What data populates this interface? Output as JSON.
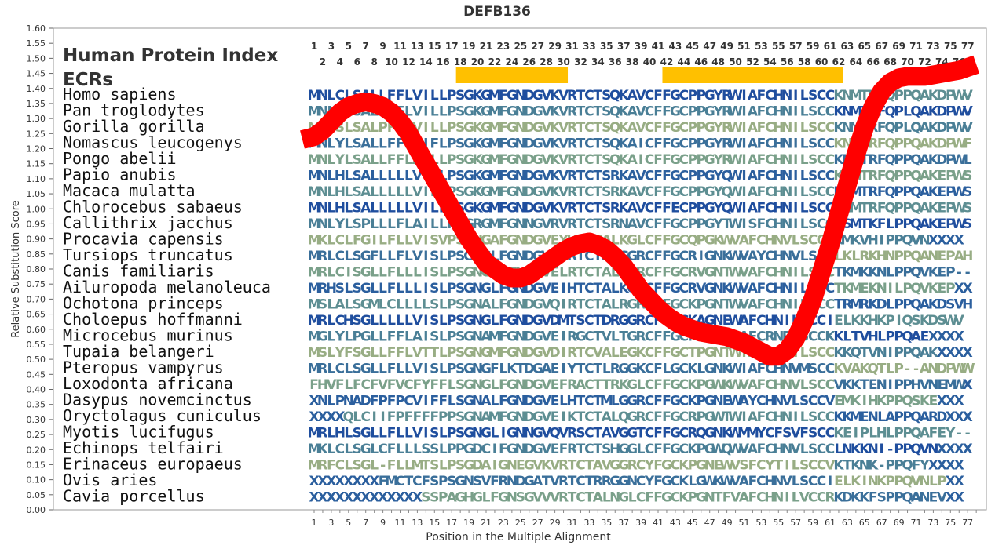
{
  "chart_data": {
    "type": "line",
    "title": "DEFB136",
    "xlabel": "Position in the Multiple Alignment",
    "ylabel": "Relative Substitution Score",
    "xlim": [
      1,
      78
    ],
    "ylim": [
      0.0,
      1.6
    ],
    "ytick_step": 0.05,
    "xticks": [
      1,
      3,
      5,
      7,
      9,
      11,
      13,
      15,
      17,
      19,
      21,
      23,
      25,
      27,
      29,
      31,
      33,
      35,
      37,
      39,
      41,
      43,
      45,
      47,
      49,
      51,
      53,
      55,
      57,
      59,
      61,
      63,
      65,
      67,
      69,
      71,
      73,
      75,
      77
    ],
    "top_row1": [
      1,
      3,
      5,
      7,
      9,
      11,
      13,
      15,
      17,
      19,
      21,
      23,
      25,
      27,
      29,
      31,
      33,
      35,
      37,
      39,
      41,
      43,
      45,
      47,
      49,
      51,
      53,
      55,
      57,
      59,
      61,
      63,
      65,
      67,
      69,
      71,
      73,
      75,
      77
    ],
    "top_row2": [
      2,
      4,
      6,
      8,
      10,
      12,
      14,
      16,
      18,
      20,
      22,
      24,
      26,
      28,
      30,
      32,
      34,
      36,
      38,
      40,
      42,
      44,
      46,
      48,
      50,
      52,
      54,
      56,
      58,
      60,
      62,
      64,
      66,
      68,
      70,
      72,
      74,
      76
    ],
    "panel_title": "Human Protein Index",
    "ecr_label": "ECRs",
    "ecr_regions": [
      [
        18,
        31
      ],
      [
        42,
        63
      ]
    ],
    "ecr_color": "#ffc000",
    "curve_color": "#ff0000",
    "grid": false,
    "curve": {
      "x": [
        0,
        1,
        2,
        3,
        4,
        5,
        6,
        7,
        8,
        9,
        10,
        11,
        12,
        13,
        14,
        15,
        16,
        17,
        18,
        19,
        20,
        21,
        22,
        23,
        24,
        25,
        26,
        27,
        28,
        29,
        30,
        31,
        32,
        33,
        34,
        35,
        36,
        37,
        38,
        39,
        40,
        41,
        42,
        43,
        44,
        45,
        46,
        47,
        48,
        49,
        50,
        51,
        52,
        53,
        54,
        55,
        56,
        57,
        58,
        59,
        60,
        61,
        62,
        63,
        64,
        65,
        66,
        67,
        68,
        69,
        70,
        71,
        72,
        73,
        74,
        75,
        76,
        77,
        78
      ],
      "y": [
        1.23,
        1.24,
        1.26,
        1.29,
        1.32,
        1.34,
        1.35,
        1.355,
        1.35,
        1.34,
        1.32,
        1.29,
        1.25,
        1.2,
        1.15,
        1.1,
        1.05,
        1.0,
        0.95,
        0.9,
        0.86,
        0.82,
        0.8,
        0.78,
        0.77,
        0.77,
        0.78,
        0.8,
        0.82,
        0.84,
        0.86,
        0.875,
        0.885,
        0.89,
        0.88,
        0.865,
        0.84,
        0.81,
        0.77,
        0.73,
        0.7,
        0.67,
        0.645,
        0.625,
        0.61,
        0.6,
        0.59,
        0.585,
        0.58,
        0.575,
        0.565,
        0.555,
        0.54,
        0.525,
        0.51,
        0.51,
        0.53,
        0.57,
        0.63,
        0.7,
        0.79,
        0.88,
        0.98,
        1.08,
        1.18,
        1.27,
        1.34,
        1.39,
        1.42,
        1.435,
        1.44,
        1.44,
        1.44,
        1.445,
        1.45,
        1.455,
        1.46,
        1.47,
        1.48
      ]
    }
  },
  "species": [
    "Homo sapiens",
    "Pan troglodytes",
    "Gorilla gorilla",
    "Nomascus leucogenys",
    "Pongo abelii",
    "Papio anubis",
    "Macaca mulatta",
    "Chlorocebus sabaeus",
    "Callithrix jacchus",
    "Procavia capensis",
    "Tursiops truncatus",
    "Canis familiaris",
    "Ailuropoda melanoleuca",
    "Ochotona princeps",
    "Choloepus hoffmanni",
    "Microcebus murinus",
    "Tupaia belangeri",
    "Pteropus vampyrus",
    "Loxodonta africana",
    "Dasypus novemcinctus",
    "Oryctolagus cuniculus",
    "Myotis lucifugus",
    "Echinops telfairi",
    "Erinaceus europaeus",
    "Ovis aries",
    "Cavia porcellus"
  ],
  "sequences": [
    "MNLCLSALLFFLVILLPSGKGMFGNDGVKVRTCTSQKAVCFFGCPPGYRWIAFCHNILSCCKNMTRFQPPQAKDPWV",
    "MNLCLSALLFFLVILLPSGKGMFGNDGVKVRTCTSQKAVCFFGCPPGYRWIAFCHNILSCCKNMTRFQPLQAKDPWV",
    "MNLSLSALPFFLVILLPSGKGMFGNDGVKVRTCTSQKAVCFFGCPPGYRWIAFCHNILSCCKNMTRFQPLQAKDPWV",
    "MNLYLSALLFFLAIFLPSGKGMFGNDGVKVRTCTSQKAICFFGCPPGYRWIAFCHNILSCCKNMTRFQPPQAKDPWF",
    "MNLYLSALLFFLAILLPSGKGMFGNDGVKVRTCTSQKAICFFGCPPGYRWIAFCHNILSCCKNMTRFQPPQAKDPWL",
    "MNLHLSALLLLLVILLPSGKGMFGNDGVKVRTCTSRKAVCFFGCPPGYQWIAFCHNILSCCKNMTRFQPPQAKEPWS",
    "MNLHLSALLLLLVILLPSGKGMFGNDGVKVRTCTSRKAVCFFGCPPGYQWIAFCHNILSCCKNMTRFQPPQAKEPWS",
    "MNLHLSALLLLLVILLPSGKGMFGNDGVKVRTCTSRKAVCFFECPPGYQWIAFCHNILSCCKNMTRFQPPQAKEPWS",
    "MNLYLSPLLLFLAILLPSGRGMFGNNGVRVRTCTSRNAVCFFGCPPGYTWISFCHNILSCCKSMTKFLPPQAKEPWS",
    "MKLCLFGILFLLVISVPSGNGAFGNDGVEYHICTALKGLCFFGCQPGKWVAFCHNVLSCCVKMKVHIPPQVNXXXX",
    "MRLCLSGFLLFLVISLPSGNGLFGNDGVEIRTCTAVGGRCFFGCRIGNKWVAYCHNVLSCCLKLRKHNPPQANEPAH",
    "MRLCISGLLFLLLISLPSGNGLFGNDGVELRTCTALKGRCFFGCRVGNTWVAFCHNILSCCTKMKKNLPPQVKEP--",
    "MRHSLSGLLFLLLISLPSGNGLFGNDGVEIHTCTALKGRCFFGCRVGNKWVAFCHNILSCCTKMEKNILPQVKEPXX",
    "MSLALSGMLCLLLLSLPSGNALFGNDGVQIRTCTALRGRCFFGCKPGNTWVAFCHNILSCCTRMRKDLPPQAKDSVH",
    "MRLCHSGLLLLLVISLPSGNGLFGNDGVDMTSCTDRGGRCFFGCKAGNEWAFCHNILSCCIELKKHKPIQSKDSWV",
    "MGLYLPGLLFFLAISLPSGNAMFGNDGVEIRGCTVLTGRCFFGCPPGQNLAFCRNRISCCKKLTVHLPPQAEXXXX",
    "MSLYFSGLLFFLVTTLPSGNGMFGNDGVDIRTCVALEGKCFFGCTPGNTWIAFCHNILSCCKKQTVNIPPQAKXXXX",
    "MRLCLSGLLFLLVISLPSGNGFLKTDGAEIYTCTLRGGKCFLGCKLGNKWIAFCHNVMSCCKVAKQTLP--ANDPWW",
    "FHVFLFCFVFVCFYFFLSGNGLFGNDGVEFRACTTRKGLCFFGCKPGWKWVAFCHNVLSCCVKKTENIPPHVNEMWX",
    "XNLPNADFPFPCVIFFLSGNALFGNDGVELHTCTMLGGRCFFGCKPGNEWAYCHNVLSCCVEMKIHKPPQSKEXXX",
    "XXXXQLCIIFPFFFFPPSGNAMFGNDGVEIKTCTALQGRCFFGCRPGWTWIAFCHNILSCCKKMENLAPPQARDXXX",
    "MRLHLSGLLFLLVISLPSGNGLIGNNGVQVRSCTAVGGTCFFGCRQGNKWMMYCFSVFSCCKEIPLHLPPQAFEY--",
    "MKLCLSGLCFLLLSSLPPGDCIFGNDGVEFRTCTSHGGLCFFGCKPGWQWVAFCHNVLSCCLNKKNI-PPQVNXXXX",
    "MRFCLSGL-FLLMTSLPSGDAIGNEGVKVRTCTAVGGRCYFGCKPGNEWVSFCYTILSCCVKTKNK-PPQFYXXXX",
    "XXXXXXXXFMCTCFSPSGNSVFRNDGATVRTCTRRGGNCYFGCKLGWKWVAFCHNVLSCCIELKINKPPQVNLPXX",
    "XXXXXXXXXXXXXSSPAGHGLFGNSGVVVRTCTALNGLCFFGCKPGNTFVAFCHNILVCCRKDKKFSPPQANEVXX"
  ],
  "palette": [
    "#1f4e9e",
    "#2b5f9e",
    "#3a6f9a",
    "#4a7f96",
    "#5d8e92",
    "#7aa08a",
    "#98ad84"
  ]
}
